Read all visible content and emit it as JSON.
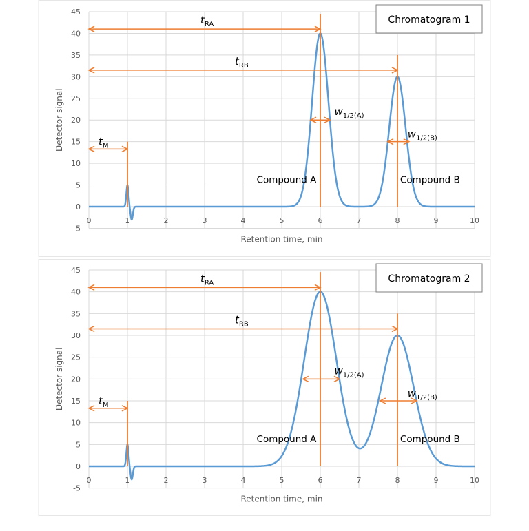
{
  "colors": {
    "curve": "#5B9BD5",
    "annotation": "#ED7D31",
    "grid": "#D9D9D9",
    "axis_text": "#595959"
  },
  "chart_data": [
    {
      "type": "line",
      "title": "Chromatogram 1",
      "xlabel": "Retention time, min",
      "ylabel": "Detector signal",
      "xlim": [
        0,
        10
      ],
      "ylim": [
        -5,
        45
      ],
      "xticks": [
        0,
        1,
        2,
        3,
        4,
        5,
        6,
        7,
        8,
        9,
        10
      ],
      "yticks": [
        -5,
        0,
        5,
        10,
        15,
        20,
        25,
        30,
        35,
        40,
        45
      ],
      "grid": true,
      "legend": "top-right",
      "peaks": [
        {
          "name": "Compound A",
          "retention_time": 6,
          "height": 40,
          "half_width": 0.5
        },
        {
          "name": "Compound B",
          "retention_time": 8,
          "height": 30,
          "half_width": 0.5
        }
      ],
      "void_peak": {
        "retention_time": 1,
        "height": 5,
        "min": -3
      },
      "annotations": {
        "tRA": {
          "label": "t",
          "sub": "RA",
          "from": 0,
          "to": 6,
          "y": 41
        },
        "tRB": {
          "label": "t",
          "sub": "RB",
          "from": 0,
          "to": 8,
          "y": 31.5
        },
        "tM": {
          "label": "t",
          "sub": "M",
          "from": 0,
          "to": 1,
          "y": 13.3
        },
        "wA": {
          "label": "w",
          "sub": "1/2(A)",
          "from": 5.75,
          "to": 6.25,
          "y": 20
        },
        "wB": {
          "label": "w",
          "sub": "1/2(B)",
          "from": 7.75,
          "to": 8.3,
          "y": 15
        },
        "vlines": [
          {
            "x": 1,
            "top": 15
          },
          {
            "x": 6,
            "top": 44.5
          },
          {
            "x": 8,
            "top": 35
          }
        ],
        "compound_a_label": "Compound A",
        "compound_b_label": "Compound B"
      }
    },
    {
      "type": "line",
      "title": "Chromatogram 2",
      "xlabel": "Retention time, min",
      "ylabel": "Detector signal",
      "xlim": [
        0,
        10
      ],
      "ylim": [
        -5,
        45
      ],
      "xticks": [
        0,
        1,
        2,
        3,
        4,
        5,
        6,
        7,
        8,
        9,
        10
      ],
      "yticks": [
        -5,
        0,
        5,
        10,
        15,
        20,
        25,
        30,
        35,
        40,
        45
      ],
      "grid": true,
      "legend": "top-right",
      "peaks": [
        {
          "name": "Compound A",
          "retention_time": 6,
          "height": 40,
          "half_width": 0.99
        },
        {
          "name": "Compound B",
          "retention_time": 8,
          "height": 30,
          "half_width": 0.99
        }
      ],
      "void_peak": {
        "retention_time": 1,
        "height": 5,
        "min": -3
      },
      "annotations": {
        "tRA": {
          "label": "t",
          "sub": "RA",
          "from": 0,
          "to": 6,
          "y": 41
        },
        "tRB": {
          "label": "t",
          "sub": "RB",
          "from": 0,
          "to": 8,
          "y": 31.5
        },
        "tM": {
          "label": "t",
          "sub": "M",
          "from": 0,
          "to": 1,
          "y": 13.3
        },
        "wA": {
          "label": "w",
          "sub": "1/2(A)",
          "from": 5.55,
          "to": 6.5,
          "y": 20
        },
        "wB": {
          "label": "w",
          "sub": "1/2(B)",
          "from": 7.55,
          "to": 8.5,
          "y": 15
        },
        "vlines": [
          {
            "x": 1,
            "top": 15
          },
          {
            "x": 6,
            "top": 44.5
          },
          {
            "x": 8,
            "top": 35
          }
        ],
        "compound_a_label": "Compound A",
        "compound_b_label": "Compound B"
      }
    }
  ]
}
